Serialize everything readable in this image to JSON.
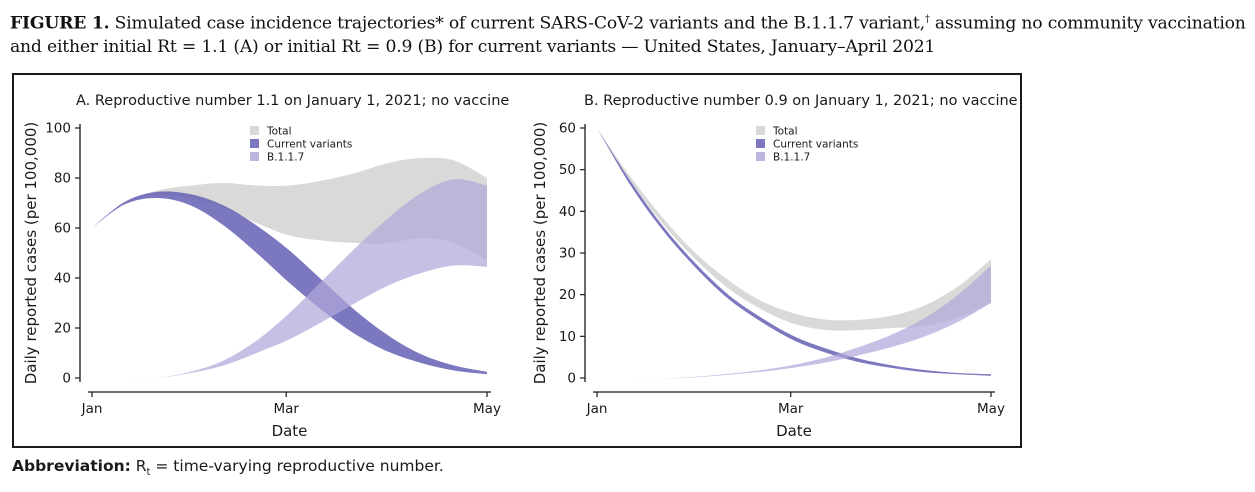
{
  "figure": {
    "label": "FIGURE 1.",
    "title_part1": " Simulated case incidence trajectories* of current SARS-CoV-2 variants and the B.1.1.7 variant,",
    "title_dagger": "†",
    "title_part2": " assuming no community vaccination and either initial Rt = 1.1 (A) or initial Rt = 0.9 (B) for current variants — United States, January–April 2021"
  },
  "footnote": {
    "label": "Abbreviation:",
    "symbol": "R",
    "symbol_sub": "t",
    "text": " = time-varying reproductive number."
  },
  "colors": {
    "total": "#d9dad8",
    "current": "#6560b4",
    "b117": "#b2a8da",
    "axis": "#1a1a1a"
  },
  "chart_data": [
    {
      "type": "area",
      "title": "A. Reproductive number 1.1 on January 1, 2021; no vaccine",
      "xlabel": "Date",
      "ylabel": "Daily reported cases (per 100,000)",
      "x_ticks": [
        "Jan",
        "Mar",
        "May"
      ],
      "x_tick_days": [
        0,
        59,
        120
      ],
      "y_ticks": [
        0,
        20,
        40,
        60,
        80,
        100
      ],
      "ylim": [
        0,
        100
      ],
      "xlim": [
        0,
        120
      ],
      "legend": [
        "Total",
        "Current variants",
        "B.1.1.7"
      ],
      "legend_position": "top-center",
      "series": [
        {
          "name": "Total",
          "x": [
            0,
            10,
            20,
            30,
            40,
            50,
            60,
            70,
            80,
            90,
            100,
            110,
            120
          ],
          "lower": [
            60,
            70,
            73,
            72,
            68,
            62,
            57,
            55,
            54,
            54,
            56,
            54,
            47
          ],
          "upper": [
            60,
            70,
            75,
            77,
            78,
            77,
            77,
            79,
            82,
            86,
            88,
            87,
            80
          ]
        },
        {
          "name": "Current variants",
          "x": [
            0,
            10,
            20,
            30,
            40,
            50,
            60,
            70,
            80,
            90,
            100,
            110,
            120
          ],
          "lower": [
            60,
            69.5,
            72,
            69,
            61,
            50,
            38,
            27,
            17.5,
            10.5,
            6,
            3,
            1.5
          ],
          "upper": [
            60,
            70.5,
            74.5,
            73.5,
            69,
            61,
            51,
            39,
            27,
            17,
            9.5,
            5,
            2.5
          ]
        },
        {
          "name": "B.1.1.7",
          "x": [
            0,
            10,
            20,
            30,
            40,
            50,
            60,
            70,
            80,
            90,
            100,
            110,
            120
          ],
          "lower": [
            -1.5,
            -1,
            0,
            2,
            5,
            10,
            15.5,
            22.5,
            30,
            37,
            42,
            45,
            44.5
          ],
          "upper": [
            -1.5,
            -1,
            0,
            2.5,
            7,
            15,
            26,
            39,
            52,
            64,
            74,
            79.5,
            77
          ]
        }
      ]
    },
    {
      "type": "area",
      "title": "B. Reproductive number 0.9 on January 1, 2021; no vaccine",
      "xlabel": "Date",
      "ylabel": "Daily reported cases (per 100,000)",
      "x_ticks": [
        "Jan",
        "Mar",
        "May"
      ],
      "x_tick_days": [
        0,
        59,
        120
      ],
      "y_ticks": [
        0,
        10,
        20,
        30,
        40,
        50,
        60
      ],
      "ylim": [
        0,
        60
      ],
      "xlim": [
        0,
        120
      ],
      "legend": [
        "Total",
        "Current variants",
        "B.1.1.7"
      ],
      "legend_position": "top-center",
      "series": [
        {
          "name": "Total",
          "x": [
            0,
            10,
            20,
            30,
            40,
            50,
            60,
            70,
            80,
            90,
            100,
            110,
            120
          ],
          "lower": [
            60,
            47.5,
            37,
            28.5,
            21.5,
            16.5,
            13,
            11.5,
            11.5,
            12,
            12.5,
            14.5,
            18
          ],
          "upper": [
            60,
            48.5,
            38.5,
            30,
            23.5,
            18.5,
            15.5,
            14,
            14,
            15,
            17.5,
            22,
            28.5
          ]
        },
        {
          "name": "Current variants",
          "x": [
            0,
            10,
            20,
            30,
            40,
            50,
            60,
            70,
            80,
            90,
            100,
            110,
            120
          ],
          "lower": [
            60,
            46.5,
            35.5,
            26.5,
            19,
            13.5,
            9,
            6,
            3.8,
            2.4,
            1.4,
            0.9,
            0.5
          ],
          "upper": [
            60,
            47.5,
            36.5,
            27.5,
            20,
            14.5,
            10,
            7,
            4.6,
            3,
            1.9,
            1.2,
            0.9
          ]
        },
        {
          "name": "B.1.1.7",
          "x": [
            0,
            10,
            20,
            30,
            40,
            50,
            60,
            70,
            80,
            90,
            100,
            110,
            120
          ],
          "lower": [
            -0.8,
            -0.6,
            -0.2,
            0.2,
            0.8,
            1.5,
            2.5,
            3.8,
            5.5,
            7.5,
            10,
            13.5,
            18
          ],
          "upper": [
            -0.8,
            -0.6,
            -0.2,
            0.3,
            1,
            1.9,
            3.2,
            5,
            7.5,
            10.5,
            14.5,
            20,
            27
          ]
        }
      ]
    }
  ]
}
